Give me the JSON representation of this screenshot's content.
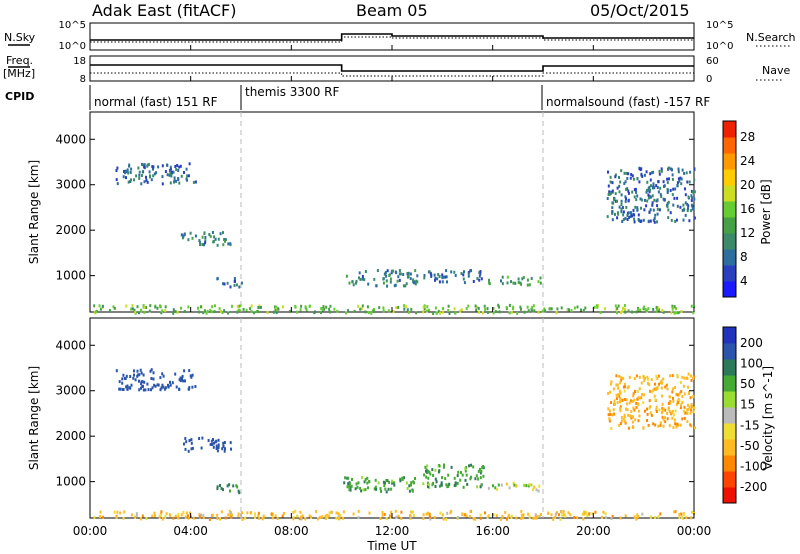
{
  "header": {
    "station": "Adak East (fitACF)",
    "beam": "Beam 05",
    "date": "05/Oct/2015"
  },
  "top_panel": {
    "left_label": "N.Sky",
    "left_ticks": [
      "10^5",
      "10^0"
    ],
    "right_label": "N.Search",
    "right_ticks": [
      "10^5",
      "10^0"
    ]
  },
  "freq_panel": {
    "left_label": "Freq.",
    "left_unit": "[MHz]",
    "left_ticks": [
      "18",
      "8"
    ],
    "right_label": "Nave",
    "right_ticks": [
      "60",
      "0"
    ]
  },
  "cpid": {
    "label": "CPID",
    "modes": [
      "normal (fast) 151 RF",
      "themis 3300 RF",
      "normalsound (fast) -157 RF"
    ]
  },
  "chart_data": [
    {
      "type": "heatmap",
      "title": "",
      "xlabel": "Time UT",
      "ylabel": "Slant Range [km]",
      "x_ticks": [
        "00:00",
        "04:00",
        "08:00",
        "12:00",
        "16:00",
        "20:00",
        "00:00"
      ],
      "y_ticks": [
        "1000",
        "2000",
        "3000",
        "4000"
      ],
      "ylim": [
        200,
        4600
      ],
      "xlim_hours": [
        0,
        24
      ],
      "colorbar_label": "Power [dB]",
      "colorbar_ticks": [
        "4",
        "8",
        "12",
        "16",
        "20",
        "24",
        "28"
      ],
      "colorbar_colors": [
        "#1a1aff",
        "#2a3fc0",
        "#2e6e9e",
        "#3c8a6a",
        "#46a046",
        "#66cc33",
        "#ccdd22",
        "#ffcc00",
        "#ff9900",
        "#ff6600",
        "#ee2200"
      ],
      "grid": "dashed vertical lines at 06:00 and 18:00",
      "echo_regions": [
        {
          "t": [
            1.0,
            4.2
          ],
          "r": [
            3050,
            3500
          ],
          "value": 6
        },
        {
          "t": [
            3.6,
            5.6
          ],
          "r": [
            1700,
            2000
          ],
          "value": 8
        },
        {
          "t": [
            5.0,
            6.0
          ],
          "r": [
            780,
            980
          ],
          "value": 6
        },
        {
          "t": [
            10.0,
            13.0
          ],
          "r": [
            800,
            1150
          ],
          "value": 8
        },
        {
          "t": [
            13.2,
            15.7
          ],
          "r": [
            880,
            1150
          ],
          "value": 6
        },
        {
          "t": [
            15.8,
            17.9
          ],
          "r": [
            820,
            1000
          ],
          "value": 10
        },
        {
          "t": [
            20.5,
            24.0
          ],
          "r": [
            2200,
            3400
          ],
          "value": 6
        },
        {
          "t": [
            0.0,
            24.0
          ],
          "r": [
            200,
            380
          ],
          "value": 14
        }
      ]
    },
    {
      "type": "heatmap",
      "title": "",
      "xlabel": "Time UT",
      "ylabel": "Slant Range [km]",
      "x_ticks": [
        "00:00",
        "04:00",
        "08:00",
        "12:00",
        "16:00",
        "20:00",
        "00:00"
      ],
      "y_ticks": [
        "1000",
        "2000",
        "3000",
        "4000"
      ],
      "ylim": [
        200,
        4600
      ],
      "xlim_hours": [
        0,
        24
      ],
      "colorbar_label": "Velocity [m s^-1]",
      "colorbar_ticks": [
        "200",
        "100",
        "50",
        "15",
        "-15",
        "-50",
        "-100",
        "-200"
      ],
      "colorbar_colors": [
        "#2233bb",
        "#2a55aa",
        "#2d7a5a",
        "#44aa33",
        "#99dd33",
        "#bbbbbb",
        "#eedd33",
        "#ffbb22",
        "#ff8800",
        "#ff4400",
        "#ee1100"
      ],
      "grid": "dashed vertical lines at 06:00 and 18:00",
      "echo_regions": [
        {
          "t": [
            1.0,
            4.2
          ],
          "r": [
            3050,
            3500
          ],
          "value": 150
        },
        {
          "t": [
            3.6,
            5.6
          ],
          "r": [
            1700,
            2000
          ],
          "value": 150
        },
        {
          "t": [
            5.0,
            6.0
          ],
          "r": [
            780,
            980
          ],
          "value": 60
        },
        {
          "t": [
            10.0,
            13.0
          ],
          "r": [
            800,
            1150
          ],
          "value": 40
        },
        {
          "t": [
            13.2,
            15.7
          ],
          "r": [
            880,
            1400
          ],
          "value": 40
        },
        {
          "t": [
            15.8,
            17.9
          ],
          "r": [
            820,
            1000
          ],
          "value": 0
        },
        {
          "t": [
            20.5,
            24.0
          ],
          "r": [
            2200,
            3400
          ],
          "value": -40
        },
        {
          "t": [
            0.0,
            24.0
          ],
          "r": [
            200,
            380
          ],
          "value": -30
        }
      ]
    }
  ]
}
